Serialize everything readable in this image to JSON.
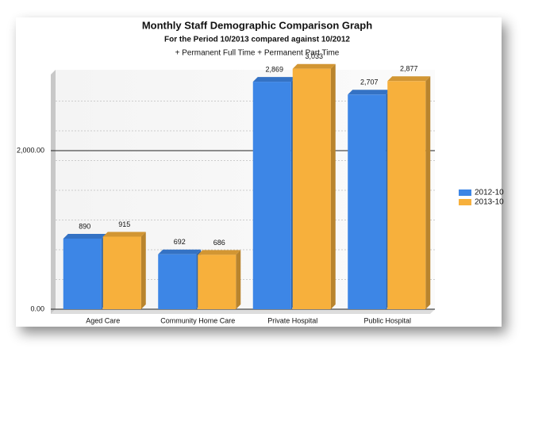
{
  "chart_data": {
    "type": "bar",
    "title": "Monthly Staff Demographic Comparison Graph",
    "subtitle": "For the Period 10/2013 compared against 10/2012",
    "caption": "+ Permanent Full Time + Permanent Part Time",
    "categories": [
      "Aged Care",
      "Community Home Care",
      "Private Hospital",
      "Public Hospital"
    ],
    "series": [
      {
        "name": "2012-10",
        "color": "#3d86e6",
        "values": [
          890,
          692,
          2869,
          2707
        ],
        "value_labels": [
          "890",
          "692",
          "2,869",
          "2,707"
        ]
      },
      {
        "name": "2013-10",
        "color": "#f7b03c",
        "values": [
          915,
          686,
          3033,
          2877
        ],
        "value_labels": [
          "915",
          "686",
          "3,033",
          "2,877"
        ]
      }
    ],
    "ylim": [
      0,
      3000
    ],
    "yticks": [
      {
        "value": 0,
        "label": "0.00"
      },
      {
        "value": 2000,
        "label": "2,000.00"
      }
    ],
    "grid": true,
    "legend": "right"
  }
}
